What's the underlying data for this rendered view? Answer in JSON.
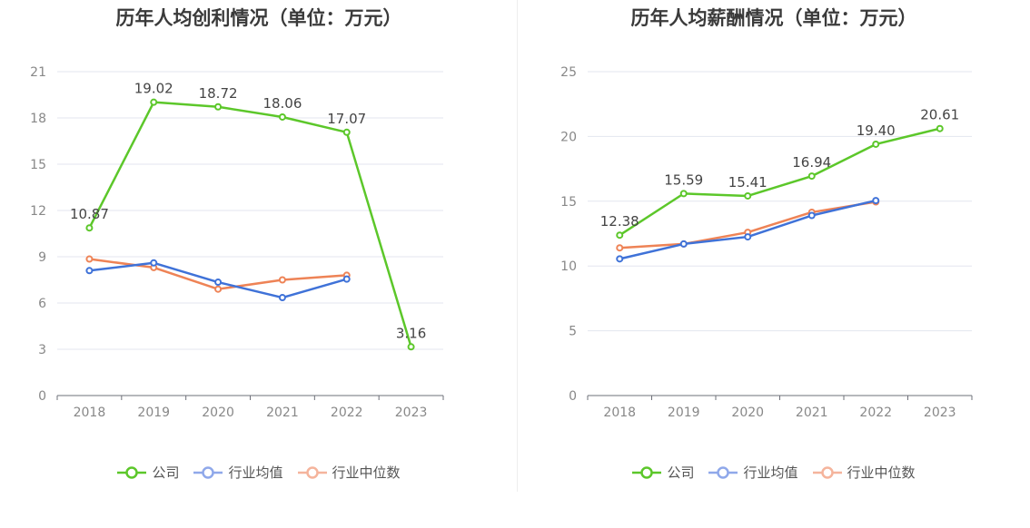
{
  "chart_data": [
    {
      "type": "line",
      "title": "历年人均创利情况（单位：万元）",
      "categories": [
        "2018",
        "2019",
        "2020",
        "2021",
        "2022",
        "2023"
      ],
      "ylim": [
        0,
        21
      ],
      "yticks": [
        0,
        3,
        6,
        9,
        12,
        15,
        18,
        21
      ],
      "grid": true,
      "legend": "bottom",
      "series": [
        {
          "name": "公司",
          "color": "#5cc72a",
          "values": [
            10.87,
            19.02,
            18.72,
            18.06,
            17.07,
            3.16
          ],
          "labels": [
            "10.87",
            "19.02",
            "18.72",
            "18.06",
            "17.07",
            "3.16"
          ]
        },
        {
          "name": "行业均值",
          "color": "#3f72d8",
          "values": [
            8.1,
            8.6,
            7.35,
            6.35,
            7.55,
            null
          ]
        },
        {
          "name": "行业中位数",
          "color": "#ee8356",
          "values": [
            8.85,
            8.3,
            6.9,
            7.5,
            7.8,
            null
          ]
        }
      ]
    },
    {
      "type": "line",
      "title": "历年人均薪酬情况（单位：万元）",
      "categories": [
        "2018",
        "2019",
        "2020",
        "2021",
        "2022",
        "2023"
      ],
      "ylim": [
        0,
        25
      ],
      "yticks": [
        0,
        5,
        10,
        15,
        20,
        25
      ],
      "grid": true,
      "legend": "bottom",
      "series": [
        {
          "name": "公司",
          "color": "#5cc72a",
          "values": [
            12.38,
            15.59,
            15.41,
            16.94,
            19.4,
            20.61
          ],
          "labels": [
            "12.38",
            "15.59",
            "15.41",
            "16.94",
            "19.40",
            "20.61"
          ]
        },
        {
          "name": "行业均值",
          "color": "#3f72d8",
          "values": [
            10.55,
            11.7,
            12.25,
            13.9,
            15.05,
            null
          ]
        },
        {
          "name": "行业中位数",
          "color": "#ee8356",
          "values": [
            11.4,
            11.7,
            12.6,
            14.15,
            14.95,
            null
          ]
        }
      ]
    }
  ],
  "legend_colors": {
    "公司": "#5cc72a",
    "行业均值": "#8fa8ea",
    "行业中位数": "#f5b49c"
  }
}
